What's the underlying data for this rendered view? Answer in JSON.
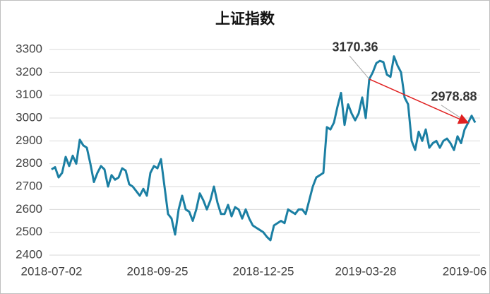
{
  "chart_data": {
    "type": "line",
    "title": "上证指数",
    "categories": [
      "2018-07-02",
      null,
      null,
      null,
      null,
      null,
      null,
      null,
      null,
      null,
      null,
      null,
      null,
      null,
      null,
      null,
      null,
      null,
      null,
      null,
      null,
      null,
      null,
      null,
      null,
      null,
      null,
      null,
      null,
      null,
      "2018-09-25",
      null,
      null,
      null,
      null,
      null,
      null,
      null,
      null,
      null,
      null,
      null,
      null,
      null,
      null,
      null,
      null,
      null,
      null,
      null,
      null,
      null,
      null,
      null,
      null,
      null,
      null,
      null,
      null,
      null,
      "2018-12-25",
      null,
      null,
      null,
      null,
      null,
      null,
      null,
      null,
      null,
      null,
      null,
      null,
      null,
      null,
      null,
      null,
      null,
      null,
      null,
      null,
      null,
      null,
      null,
      null,
      null,
      null,
      null,
      null,
      "2019-03-28",
      null,
      null,
      null,
      null,
      null,
      null,
      null,
      null,
      null,
      null,
      null,
      null,
      null,
      null,
      null,
      null,
      null,
      null,
      null,
      null,
      null,
      null,
      null,
      null,
      null,
      null,
      null,
      "2019-06",
      null,
      null,
      null
    ],
    "series": [
      {
        "color": "#1b7fa3",
        "values": [
          2775,
          2785,
          2740,
          2760,
          2830,
          2790,
          2835,
          2800,
          2905,
          2880,
          2870,
          2800,
          2720,
          2760,
          2790,
          2775,
          2700,
          2750,
          2730,
          2740,
          2780,
          2770,
          2710,
          2700,
          2680,
          2660,
          2690,
          2660,
          2760,
          2790,
          2780,
          2820,
          2700,
          2580,
          2560,
          2490,
          2600,
          2660,
          2600,
          2590,
          2550,
          2600,
          2670,
          2640,
          2600,
          2640,
          2700,
          2630,
          2580,
          2580,
          2620,
          2570,
          2610,
          2600,
          2560,
          2600,
          2560,
          2530,
          2520,
          2510,
          2500,
          2480,
          2465,
          2530,
          2540,
          2550,
          2540,
          2600,
          2590,
          2580,
          2600,
          2600,
          2580,
          2640,
          2700,
          2740,
          2750,
          2760,
          2960,
          2950,
          2980,
          3050,
          3110,
          2970,
          3060,
          3020,
          2990,
          3020,
          3090,
          3000,
          3170.36,
          3200,
          3240,
          3250,
          3245,
          3190,
          3180,
          3270,
          3230,
          3200,
          3090,
          3060,
          2900,
          2860,
          2940,
          2900,
          2950,
          2870,
          2890,
          2900,
          2870,
          2900,
          2910,
          2890,
          2860,
          2920,
          2890,
          2950,
          2978.88,
          3010,
          2980
        ],
        "value_labels": [
          null,
          null,
          null,
          null,
          null,
          null,
          null,
          null,
          null,
          null,
          null,
          null,
          null,
          null,
          null,
          null,
          null,
          null,
          null,
          null,
          null,
          null,
          null,
          null,
          null,
          null,
          null,
          null,
          null,
          null,
          null,
          null,
          null,
          null,
          null,
          null,
          null,
          null,
          null,
          null,
          null,
          null,
          null,
          null,
          null,
          null,
          null,
          null,
          null,
          null,
          null,
          null,
          null,
          null,
          null,
          null,
          null,
          null,
          null,
          null,
          null,
          null,
          null,
          null,
          null,
          null,
          null,
          null,
          null,
          null,
          null,
          null,
          null,
          null,
          null,
          null,
          null,
          null,
          null,
          null,
          null,
          null,
          null,
          null,
          null,
          null,
          null,
          null,
          null,
          null,
          "3170.36",
          null,
          null,
          null,
          null,
          null,
          null,
          null,
          null,
          null,
          null,
          null,
          null,
          null,
          null,
          null,
          null,
          null,
          null,
          null,
          null,
          null,
          null,
          null,
          null,
          null,
          null,
          null,
          "2978.88",
          null,
          null
        ]
      }
    ],
    "ylim": [
      2400,
      3300
    ],
    "yticks": [
      2400,
      2500,
      2600,
      2700,
      2800,
      2900,
      3000,
      3100,
      3200,
      3300
    ],
    "grid": true,
    "arrow_color": "#e02020"
  }
}
